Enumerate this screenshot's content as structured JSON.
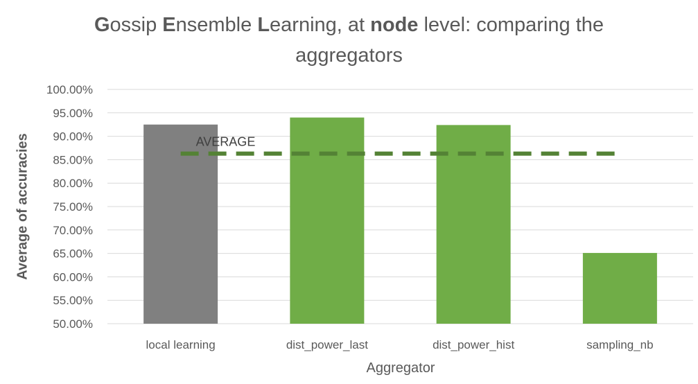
{
  "title": {
    "p1_bold": "G",
    "p2": "ossip ",
    "p3_bold": "E",
    "p4": "nsemble ",
    "p5_bold": "L",
    "p6": "earning, at ",
    "p7_bold": "node",
    "p8": " level: comparing the",
    "line2": "aggregators"
  },
  "colors": {
    "baseline": "#808080",
    "aggregator": "#70ad47",
    "average_line": "#548235",
    "grid": "#d9d9d9"
  },
  "chart_data": {
    "type": "bar",
    "title": "Gossip Ensemble Learning, at node level: comparing the aggregators",
    "xlabel": "Aggregator",
    "ylabel": "Average of accuracies",
    "categories": [
      "local learning",
      "dist_power_last",
      "dist_power_hist",
      "sampling_nb"
    ],
    "values": [
      92.5,
      94.0,
      92.4,
      65.1
    ],
    "bar_colors": [
      "#808080",
      "#70ad47",
      "#70ad47",
      "#70ad47"
    ],
    "ylim": [
      50,
      100
    ],
    "yticks": [
      "50.00%",
      "55.00%",
      "60.00%",
      "65.00%",
      "70.00%",
      "75.00%",
      "80.00%",
      "85.00%",
      "90.00%",
      "95.00%",
      "100.00%"
    ],
    "average": {
      "label": "AVERAGE",
      "value": 86.3
    },
    "grid": true
  }
}
